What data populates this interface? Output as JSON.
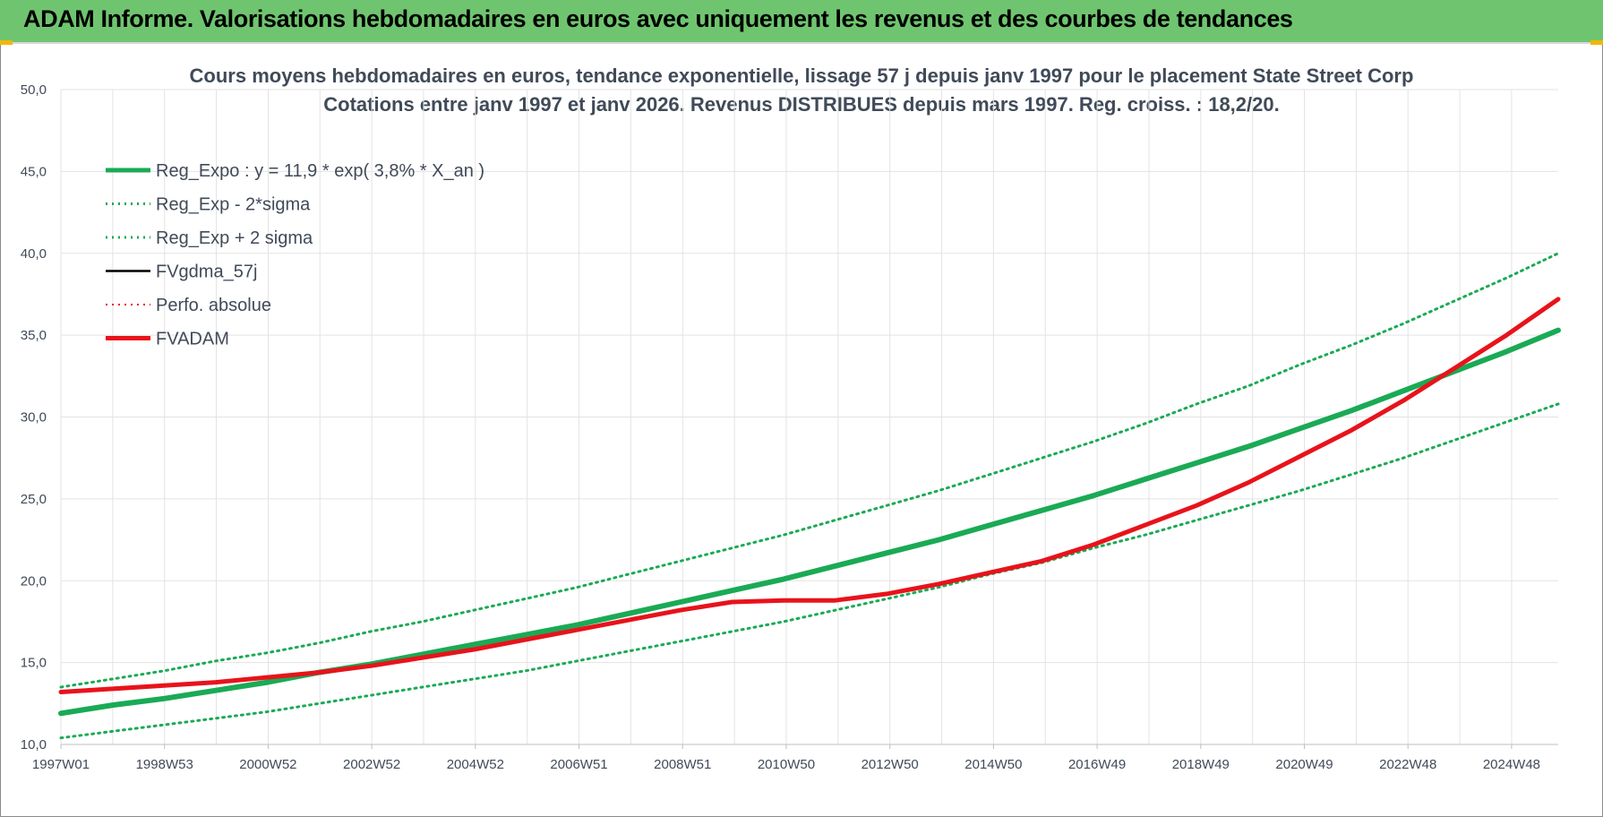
{
  "banner": {
    "title": "ADAM Informe. Valorisations hebdomadaires en euros avec uniquement les revenus et des courbes de tendances"
  },
  "colors": {
    "banner_bg": "#6fc56f",
    "trend_green": "#1aaa55",
    "fvadam_red": "#e8131b",
    "fvgdma_black": "#000000",
    "text": "#404a58",
    "grid": "#e3e3e3"
  },
  "chart_data": {
    "type": "line",
    "title": "Cours moyens hebdomadaires en euros, tendance exponentielle, lissage 57 j depuis janv 1997  pour le placement State Street Corp",
    "subtitle": "Cotations entre janv 1997 et janv 2026. Revenus DISTRIBUES depuis mars 1997. Reg. croiss. : 18,2/20.",
    "xlabel": "",
    "ylabel": "",
    "ylim": [
      10,
      50
    ],
    "yticks": [
      "10,0",
      "15,0",
      "20,0",
      "25,0",
      "30,0",
      "35,0",
      "40,0",
      "45,0",
      "50,0"
    ],
    "grid": true,
    "legend_position": "top-left",
    "x_tick_labels": [
      "1997W01",
      "1998W53",
      "2000W52",
      "2002W52",
      "2004W52",
      "2006W51",
      "2008W51",
      "2010W50",
      "2012W50",
      "2014W50",
      "2016W49",
      "2018W49",
      "2020W49",
      "2022W48",
      "2024W48"
    ],
    "x": [
      1997,
      1998,
      1999,
      2000,
      2001,
      2002,
      2003,
      2004,
      2005,
      2006,
      2007,
      2008,
      2009,
      2010,
      2011,
      2012,
      2013,
      2014,
      2015,
      2016,
      2017,
      2018,
      2019,
      2020,
      2021,
      2022,
      2023,
      2024,
      2025,
      2026
    ],
    "series": [
      {
        "name": "Reg_Expo : y = 11,9 * exp( 3,8% *  X_an )",
        "style": "solid-thick",
        "color": "#1aaa55",
        "values": [
          11.9,
          12.4,
          12.8,
          13.3,
          13.8,
          14.4,
          14.9,
          15.5,
          16.1,
          16.7,
          17.3,
          18.0,
          18.7,
          19.4,
          20.1,
          20.9,
          21.7,
          22.5,
          23.4,
          24.3,
          25.2,
          26.2,
          27.2,
          28.2,
          29.3,
          30.4,
          31.6,
          32.8,
          34.0,
          35.3
        ]
      },
      {
        "name": "Reg_Exp - 2*sigma",
        "style": "dotted",
        "color": "#1aaa55",
        "values": [
          10.4,
          10.8,
          11.2,
          11.6,
          12.0,
          12.5,
          13.0,
          13.5,
          14.0,
          14.5,
          15.1,
          15.7,
          16.3,
          16.9,
          17.5,
          18.2,
          18.9,
          19.6,
          20.4,
          21.1,
          22.0,
          22.8,
          23.7,
          24.6,
          25.5,
          26.5,
          27.5,
          28.6,
          29.7,
          30.8
        ]
      },
      {
        "name": "Reg_Exp + 2 sigma",
        "style": "dotted",
        "color": "#1aaa55",
        "values": [
          13.5,
          14.0,
          14.5,
          15.1,
          15.6,
          16.2,
          16.9,
          17.5,
          18.2,
          18.9,
          19.6,
          20.4,
          21.2,
          22.0,
          22.8,
          23.7,
          24.6,
          25.5,
          26.5,
          27.5,
          28.5,
          29.6,
          30.8,
          31.9,
          33.2,
          34.4,
          35.7,
          37.1,
          38.5,
          40.0
        ]
      },
      {
        "name": "FVgdma_57j",
        "style": "solid",
        "color": "#000000",
        "values": [
          13.2,
          13.4,
          13.6,
          13.8,
          14.1,
          14.4,
          14.8,
          15.3,
          15.8,
          16.4,
          17.0,
          17.6,
          18.2,
          18.7,
          18.8,
          18.8,
          19.2,
          19.8,
          20.5,
          21.2,
          22.2,
          23.4,
          24.6,
          26.0,
          27.6,
          29.2,
          31.0,
          33.0,
          35.0,
          37.2
        ]
      },
      {
        "name": "Perfo. absolue",
        "style": "dotted",
        "color": "#e8131b",
        "values": [
          13.2,
          13.4,
          13.6,
          13.8,
          14.1,
          14.4,
          14.8,
          15.3,
          15.8,
          16.4,
          17.0,
          17.6,
          18.2,
          18.7,
          18.8,
          18.8,
          19.2,
          19.8,
          20.5,
          21.2,
          22.2,
          23.4,
          24.6,
          26.0,
          27.6,
          29.2,
          31.0,
          33.0,
          35.0,
          37.2
        ]
      },
      {
        "name": "FVADAM",
        "style": "solid-thick",
        "color": "#e8131b",
        "values": [
          13.2,
          13.4,
          13.6,
          13.8,
          14.1,
          14.4,
          14.8,
          15.3,
          15.8,
          16.4,
          17.0,
          17.6,
          18.2,
          18.7,
          18.8,
          18.8,
          19.2,
          19.8,
          20.5,
          21.2,
          22.2,
          23.4,
          24.6,
          26.0,
          27.6,
          29.2,
          31.0,
          33.0,
          35.0,
          37.2
        ]
      }
    ]
  }
}
